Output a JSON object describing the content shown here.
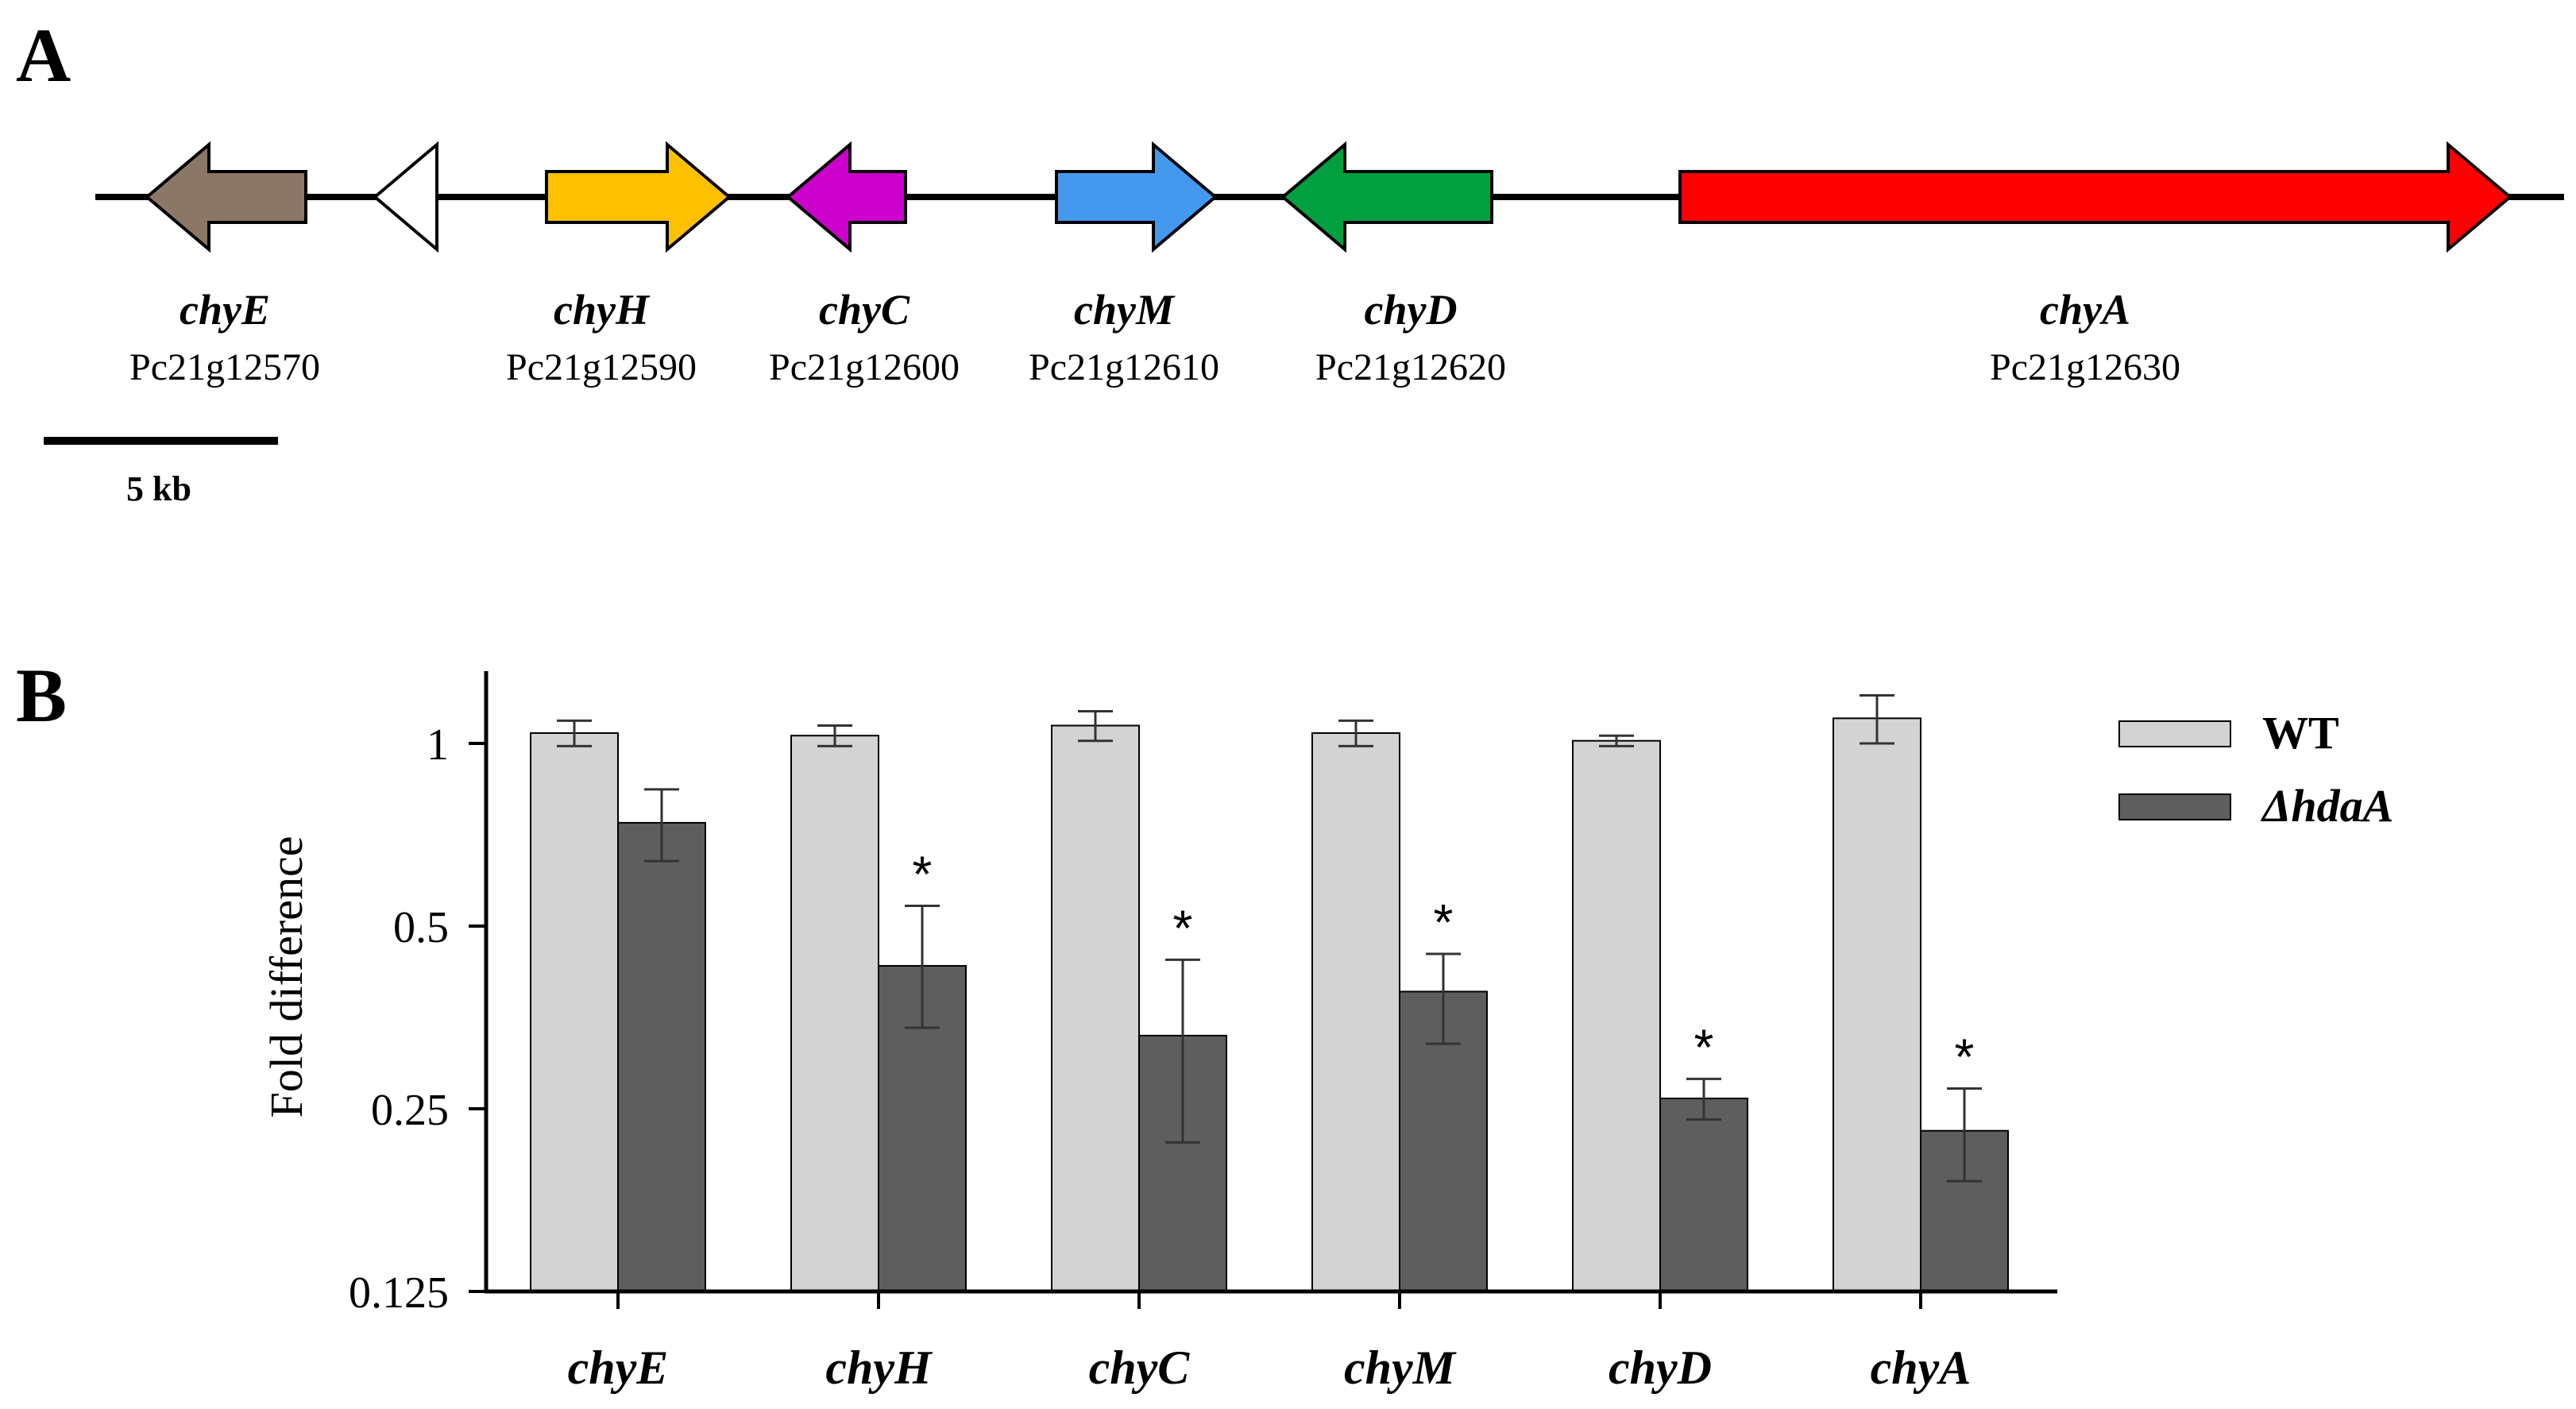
{
  "panel_a": {
    "label": "A",
    "genes": [
      {
        "name": "chyE",
        "id": "Pc21g12570",
        "color": "#8b7765",
        "strand": "-"
      },
      {
        "name": "",
        "id": "",
        "color": "#ffffff",
        "strand": "-"
      },
      {
        "name": "chyH",
        "id": "Pc21g12590",
        "color": "#ffc000",
        "strand": "+"
      },
      {
        "name": "chyC",
        "id": "Pc21g12600",
        "color": "#cc00cc",
        "strand": "-"
      },
      {
        "name": "chyM",
        "id": "Pc21g12610",
        "color": "#4499ee",
        "strand": "+"
      },
      {
        "name": "chyD",
        "id": "Pc21g12620",
        "color": "#00a040",
        "strand": "-"
      },
      {
        "name": "chyA",
        "id": "Pc21g12630",
        "color": "#ff0000",
        "strand": "+"
      }
    ],
    "scale_bar_label": "5 kb"
  },
  "panel_b": {
    "label": "B"
  },
  "chart_data": {
    "type": "bar",
    "categories": [
      "chyE",
      "chyH",
      "chyC",
      "chyM",
      "chyD",
      "chyA"
    ],
    "series": [
      {
        "name": "WT",
        "color": "#d3d3d3",
        "values": [
          1.04,
          1.03,
          1.07,
          1.04,
          1.01,
          1.1
        ],
        "error_low": [
          0.99,
          0.99,
          1.01,
          0.99,
          0.99,
          1.0
        ],
        "error_high": [
          1.09,
          1.07,
          1.13,
          1.09,
          1.03,
          1.2
        ]
      },
      {
        "name": "ΔhdaA",
        "color": "#5e5e5e",
        "values": [
          0.74,
          0.43,
          0.33,
          0.39,
          0.26,
          0.23
        ],
        "error_low": [
          0.64,
          0.34,
          0.22,
          0.32,
          0.24,
          0.19
        ],
        "error_high": [
          0.84,
          0.54,
          0.44,
          0.45,
          0.28,
          0.27
        ]
      }
    ],
    "significant": [
      false,
      true,
      true,
      true,
      true,
      true
    ],
    "significance_mark": "*",
    "ylabel": "Fold difference",
    "xlabel": "",
    "y_scale": "log2",
    "ylim": [
      0.125,
      1.5
    ],
    "yticks": [
      0.125,
      0.25,
      0.5,
      1
    ],
    "ytick_labels": [
      "0.125",
      "0.25",
      "0.5",
      "1"
    ],
    "legend_position": "top-right",
    "grid": false
  }
}
